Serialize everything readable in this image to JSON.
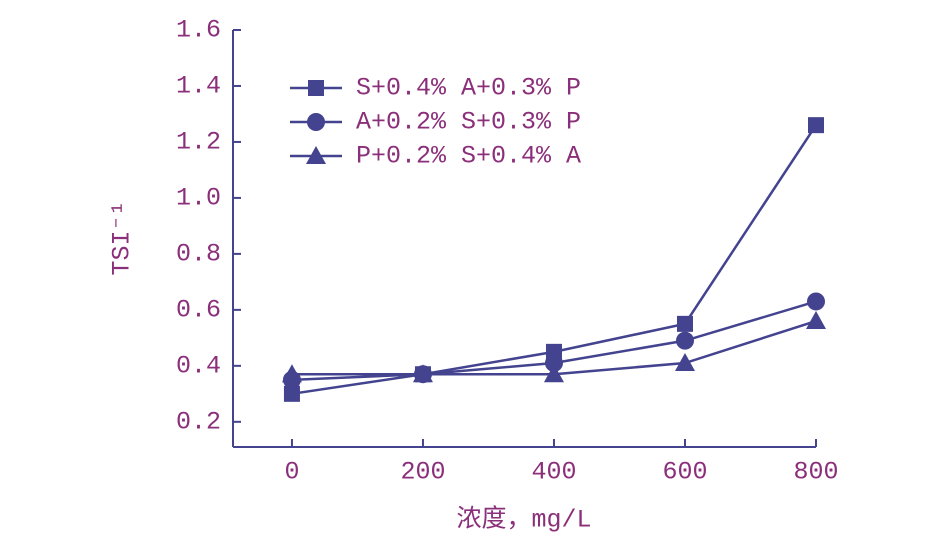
{
  "chart_data": {
    "type": "line",
    "y_label": "TSI⁻¹",
    "x_label": "浓度，mg/L",
    "x": [
      0,
      200,
      400,
      600,
      800
    ],
    "xlim": [
      -90,
      800
    ],
    "xticks": [
      0,
      200,
      400,
      600,
      800
    ],
    "ylim": [
      0.11,
      1.6
    ],
    "yticks": [
      0.2,
      0.4,
      0.6,
      0.8,
      {
        "value": 1,
        "label": "1.0"
      },
      1.2,
      1.4,
      1.6
    ],
    "legend": "top-left",
    "series": [
      {
        "name": "S+0.4% A+0.3% P",
        "color": "#43438f",
        "marker": "square",
        "values": [
          0.3,
          0.37,
          0.45,
          0.55,
          1.26
        ]
      },
      {
        "name": "A+0.2% S+0.3% P",
        "color": "#43438f",
        "marker": "circle",
        "values": [
          0.35,
          0.37,
          0.41,
          0.49,
          0.63
        ]
      },
      {
        "name": "P+0.2% S+0.4% A",
        "color": "#43438f",
        "marker": "triangle",
        "values": [
          0.37,
          0.37,
          0.37,
          0.41,
          0.56
        ]
      }
    ]
  }
}
